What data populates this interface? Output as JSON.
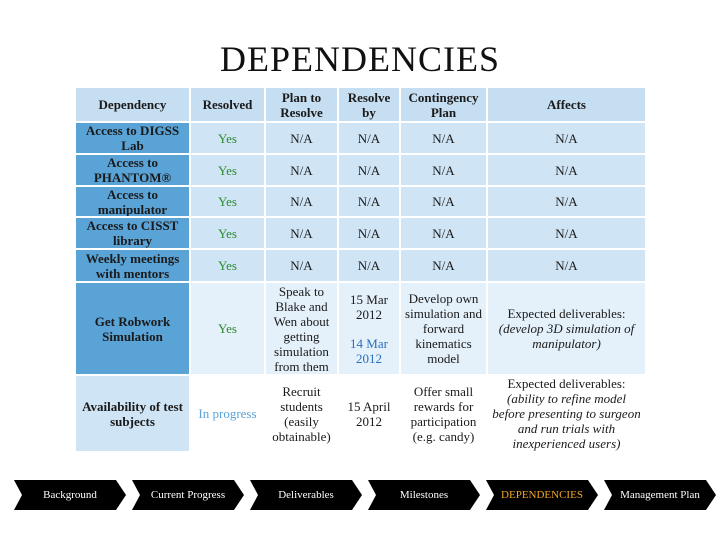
{
  "header": {
    "title": "DEPENDENCIES"
  },
  "table": {
    "columns": [
      "Dependency",
      "Resolved",
      "Plan to Resolve",
      "Resolve by",
      "Contingency Plan",
      "Affects"
    ],
    "rows": [
      [
        "Access to DIGSS Lab",
        "Yes",
        "N/A",
        "N/A",
        "N/A",
        "N/A"
      ],
      [
        "Access to PHANTOM®",
        "Yes",
        "N/A",
        "N/A",
        "N/A",
        "N/A"
      ],
      [
        "Access to manipulator",
        "Yes",
        "N/A",
        "N/A",
        "N/A",
        "N/A"
      ],
      [
        "Access to CISST library",
        "Yes",
        "N/A",
        "N/A",
        "N/A",
        "N/A"
      ],
      [
        "Weekly meetings with mentors",
        "Yes",
        "N/A",
        "N/A",
        "N/A",
        "N/A"
      ],
      [
        "Get Robwork Simulation",
        "Yes",
        "Speak to Blake and Wen about getting simulation from them",
        [
          "15 Mar 2012",
          "14 Mar 2012"
        ],
        "Develop own simulation and forward kinematics model",
        [
          "Expected deliverables:",
          "(develop 3D simulation of manipulator)"
        ]
      ],
      [
        "Availability of test subjects",
        "In progress",
        "Recruit students (easily obtainable)",
        "15 April 2012",
        "Offer small rewards for participation (e.g. candy)",
        [
          "Expected deliverables:",
          "(ability to refine model before presenting to surgeon and run trials with inexperienced users)"
        ]
      ]
    ]
  },
  "nav": {
    "items": [
      "Background",
      "Current Progress",
      "Deliverables",
      "Milestones",
      "DEPENDENCIES",
      "Management Plan"
    ],
    "active": 4
  }
}
